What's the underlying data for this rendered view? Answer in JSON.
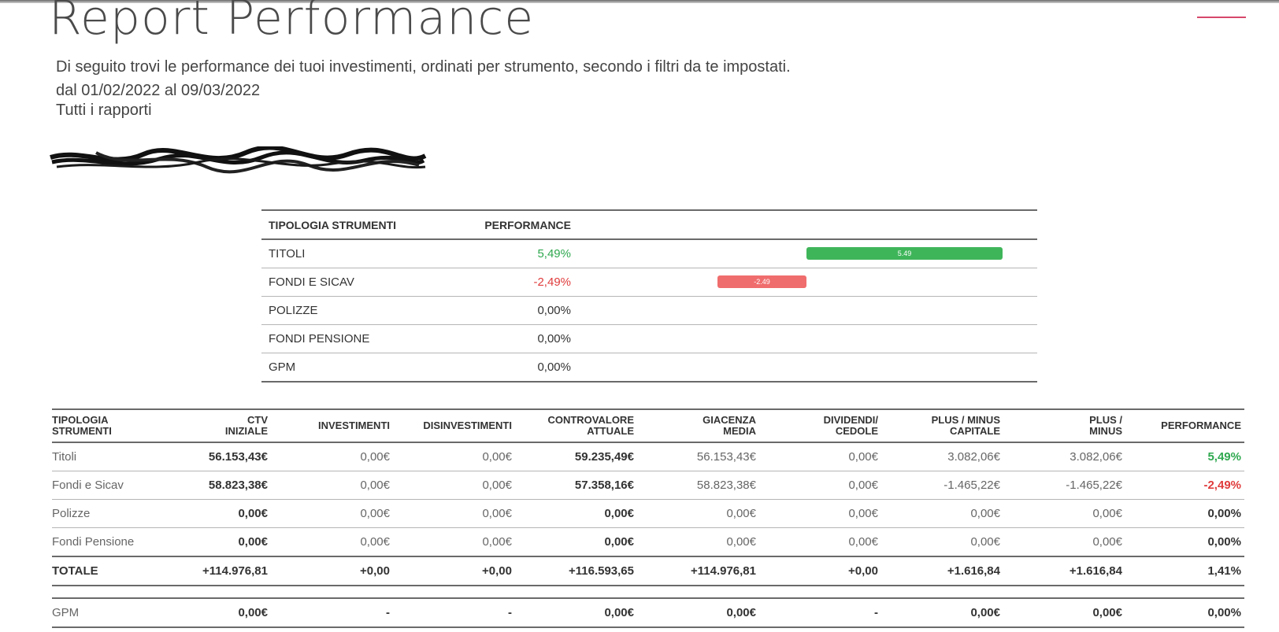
{
  "page": {
    "title": "Report Performance",
    "description": "Di seguito trovi le performance dei tuoi investimenti, ordinati per strumento, secondo i filtri da te impostati.",
    "period": "dal 01/02/2022 al 09/03/2022",
    "scope": "Tutti i rapporti"
  },
  "colors": {
    "positive": "#3fb55a",
    "negative": "#f06d6d",
    "menu_accent": "#d6486b"
  },
  "summary": {
    "headers": {
      "type": "TIPOLOGIA STRUMENTI",
      "performance": "PERFORMANCE"
    },
    "bar_scale": {
      "min": -2.49,
      "max": 5.49
    },
    "rows": [
      {
        "label": "TITOLI",
        "value": "5,49%",
        "bar_value": 5.49,
        "bar_label": "5.49",
        "sign": "pos"
      },
      {
        "label": "FONDI E SICAV",
        "value": "-2,49%",
        "bar_value": -2.49,
        "bar_label": "-2.49",
        "sign": "neg"
      },
      {
        "label": "POLIZZE",
        "value": "0,00%",
        "bar_value": 0,
        "bar_label": "",
        "sign": "zero"
      },
      {
        "label": "FONDI PENSIONE",
        "value": "0,00%",
        "bar_value": 0,
        "bar_label": "",
        "sign": "zero"
      },
      {
        "label": "GPM",
        "value": "0,00%",
        "bar_value": 0,
        "bar_label": "",
        "sign": "zero"
      }
    ]
  },
  "detail": {
    "headers": {
      "type": [
        "TIPOLOGIA",
        "STRUMENTI"
      ],
      "ctv_initial": [
        "CTV",
        "INIZIALE"
      ],
      "investments": [
        "INVESTIMENTI",
        ""
      ],
      "divestments": [
        "DISINVESTIMENTI",
        ""
      ],
      "current_value": [
        "CONTROVALORE",
        "ATTUALE"
      ],
      "avg_stock": [
        "GIACENZA",
        "MEDIA"
      ],
      "dividends": [
        "DIVIDENDI/",
        "CEDOLE"
      ],
      "capital_gain": [
        "PLUS / MINUS",
        "CAPITALE"
      ],
      "gain": [
        "PLUS /",
        "MINUS"
      ],
      "performance": [
        "PERFORMANCE",
        ""
      ]
    },
    "rows": [
      {
        "label": "Titoli",
        "ctv": "56.153,43€",
        "inv": "0,00€",
        "disinv": "0,00€",
        "current": "59.235,49€",
        "avg": "56.153,43€",
        "div": "0,00€",
        "cap": "3.082,06€",
        "gain": "3.082,06€",
        "perf": "5,49%",
        "perf_class": "perf-green"
      },
      {
        "label": "Fondi e Sicav",
        "ctv": "58.823,38€",
        "inv": "0,00€",
        "disinv": "0,00€",
        "current": "57.358,16€",
        "avg": "58.823,38€",
        "div": "0,00€",
        "cap": "-1.465,22€",
        "gain": "-1.465,22€",
        "perf": "-2,49%",
        "perf_class": "perf-red"
      },
      {
        "label": "Polizze",
        "ctv": "0,00€",
        "inv": "0,00€",
        "disinv": "0,00€",
        "current": "0,00€",
        "avg": "0,00€",
        "div": "0,00€",
        "cap": "0,00€",
        "gain": "0,00€",
        "perf": "0,00%",
        "perf_class": "perf-plain"
      },
      {
        "label": "Fondi Pensione",
        "ctv": "0,00€",
        "inv": "0,00€",
        "disinv": "0,00€",
        "current": "0,00€",
        "avg": "0,00€",
        "div": "0,00€",
        "cap": "0,00€",
        "gain": "0,00€",
        "perf": "0,00%",
        "perf_class": "perf-plain"
      }
    ],
    "total": {
      "label": "TOTALE",
      "ctv": "+114.976,81",
      "inv": "+0,00",
      "disinv": "+0,00",
      "current": "+116.593,65",
      "avg": "+114.976,81",
      "div": "+0,00",
      "cap": "+1.616,84",
      "gain": "+1.616,84",
      "perf": "1,41%"
    },
    "gpm": {
      "label": "GPM",
      "ctv": "0,00€",
      "inv": "-",
      "disinv": "-",
      "current": "0,00€",
      "avg": "0,00€",
      "div": "-",
      "cap": "0,00€",
      "gain": "0,00€",
      "perf": "0,00%"
    }
  }
}
